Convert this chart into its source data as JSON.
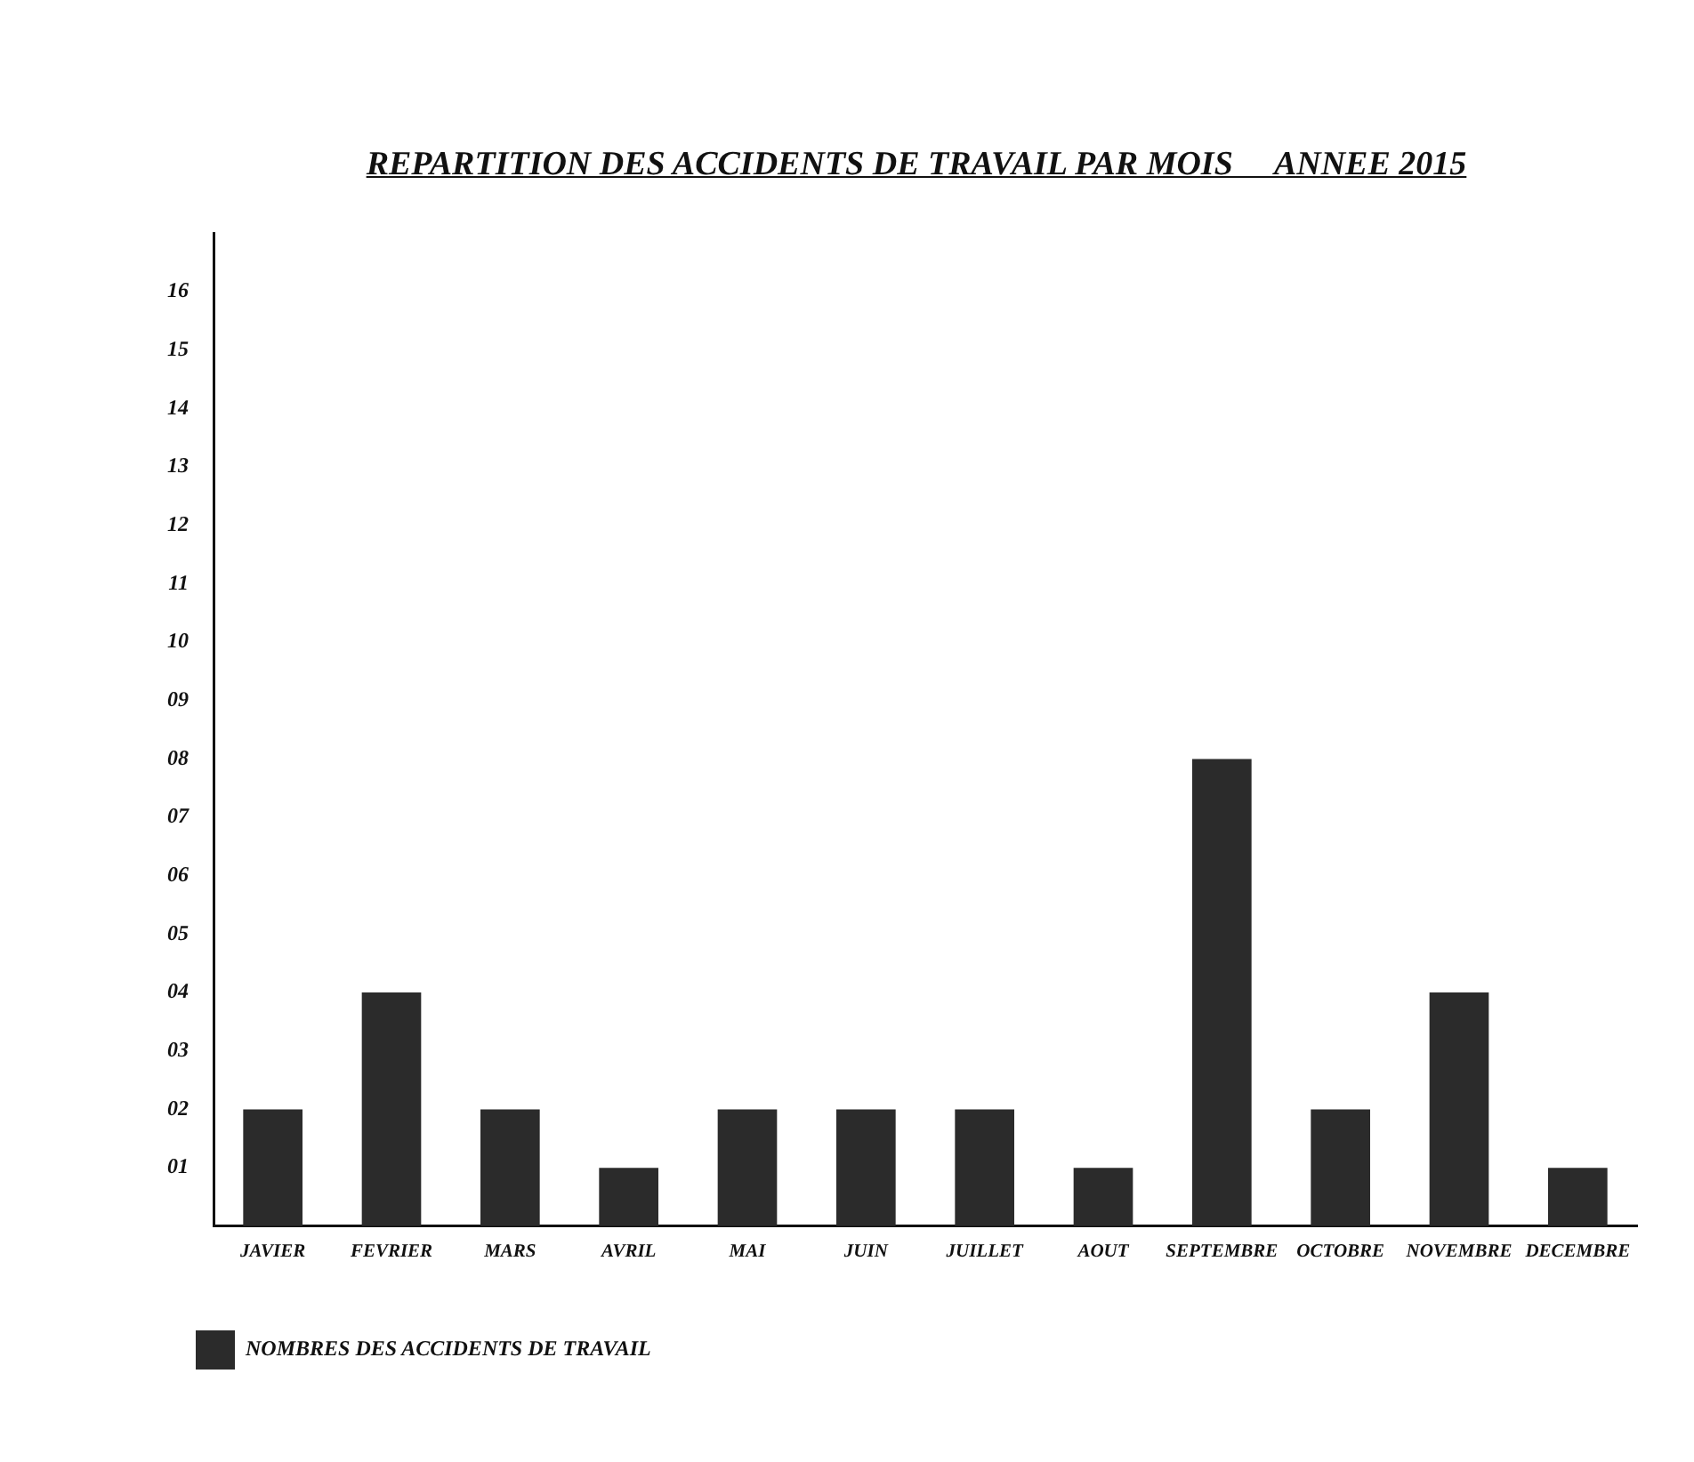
{
  "chart_data": {
    "type": "bar",
    "title": "REPARTITION DES ACCIDENTS DE TRAVAIL PAR MOIS     ANNEE 2015",
    "categories": [
      "JAVIER",
      "FEVRIER",
      "MARS",
      "AVRIL",
      "MAI",
      "JUIN",
      "JUILLET",
      "AOUT",
      "SEPTEMBRE",
      "OCTOBRE",
      "NOVEMBRE",
      "DECEMBRE"
    ],
    "series": [
      {
        "name": "NOMBRES DES ACCIDENTS DE TRAVAIL",
        "color": "#2b2b2b",
        "values": [
          2,
          4,
          2,
          1,
          2,
          2,
          2,
          1,
          8,
          2,
          4,
          1
        ]
      }
    ],
    "ylim": [
      0,
      17
    ],
    "yticks": [
      {
        "value": 1,
        "label": "01"
      },
      {
        "value": 2,
        "label": "02"
      },
      {
        "value": 3,
        "label": "03"
      },
      {
        "value": 4,
        "label": "04"
      },
      {
        "value": 5,
        "label": "05"
      },
      {
        "value": 6,
        "label": "06"
      },
      {
        "value": 7,
        "label": "07"
      },
      {
        "value": 8,
        "label": "08"
      },
      {
        "value": 9,
        "label": "09"
      },
      {
        "value": 10,
        "label": "10"
      },
      {
        "value": 11,
        "label": "11"
      },
      {
        "value": 12,
        "label": "12"
      },
      {
        "value": 13,
        "label": "13"
      },
      {
        "value": 14,
        "label": "14"
      },
      {
        "value": 15,
        "label": "15"
      },
      {
        "value": 16,
        "label": "16"
      }
    ],
    "grid": false,
    "legend": "bottom left"
  }
}
